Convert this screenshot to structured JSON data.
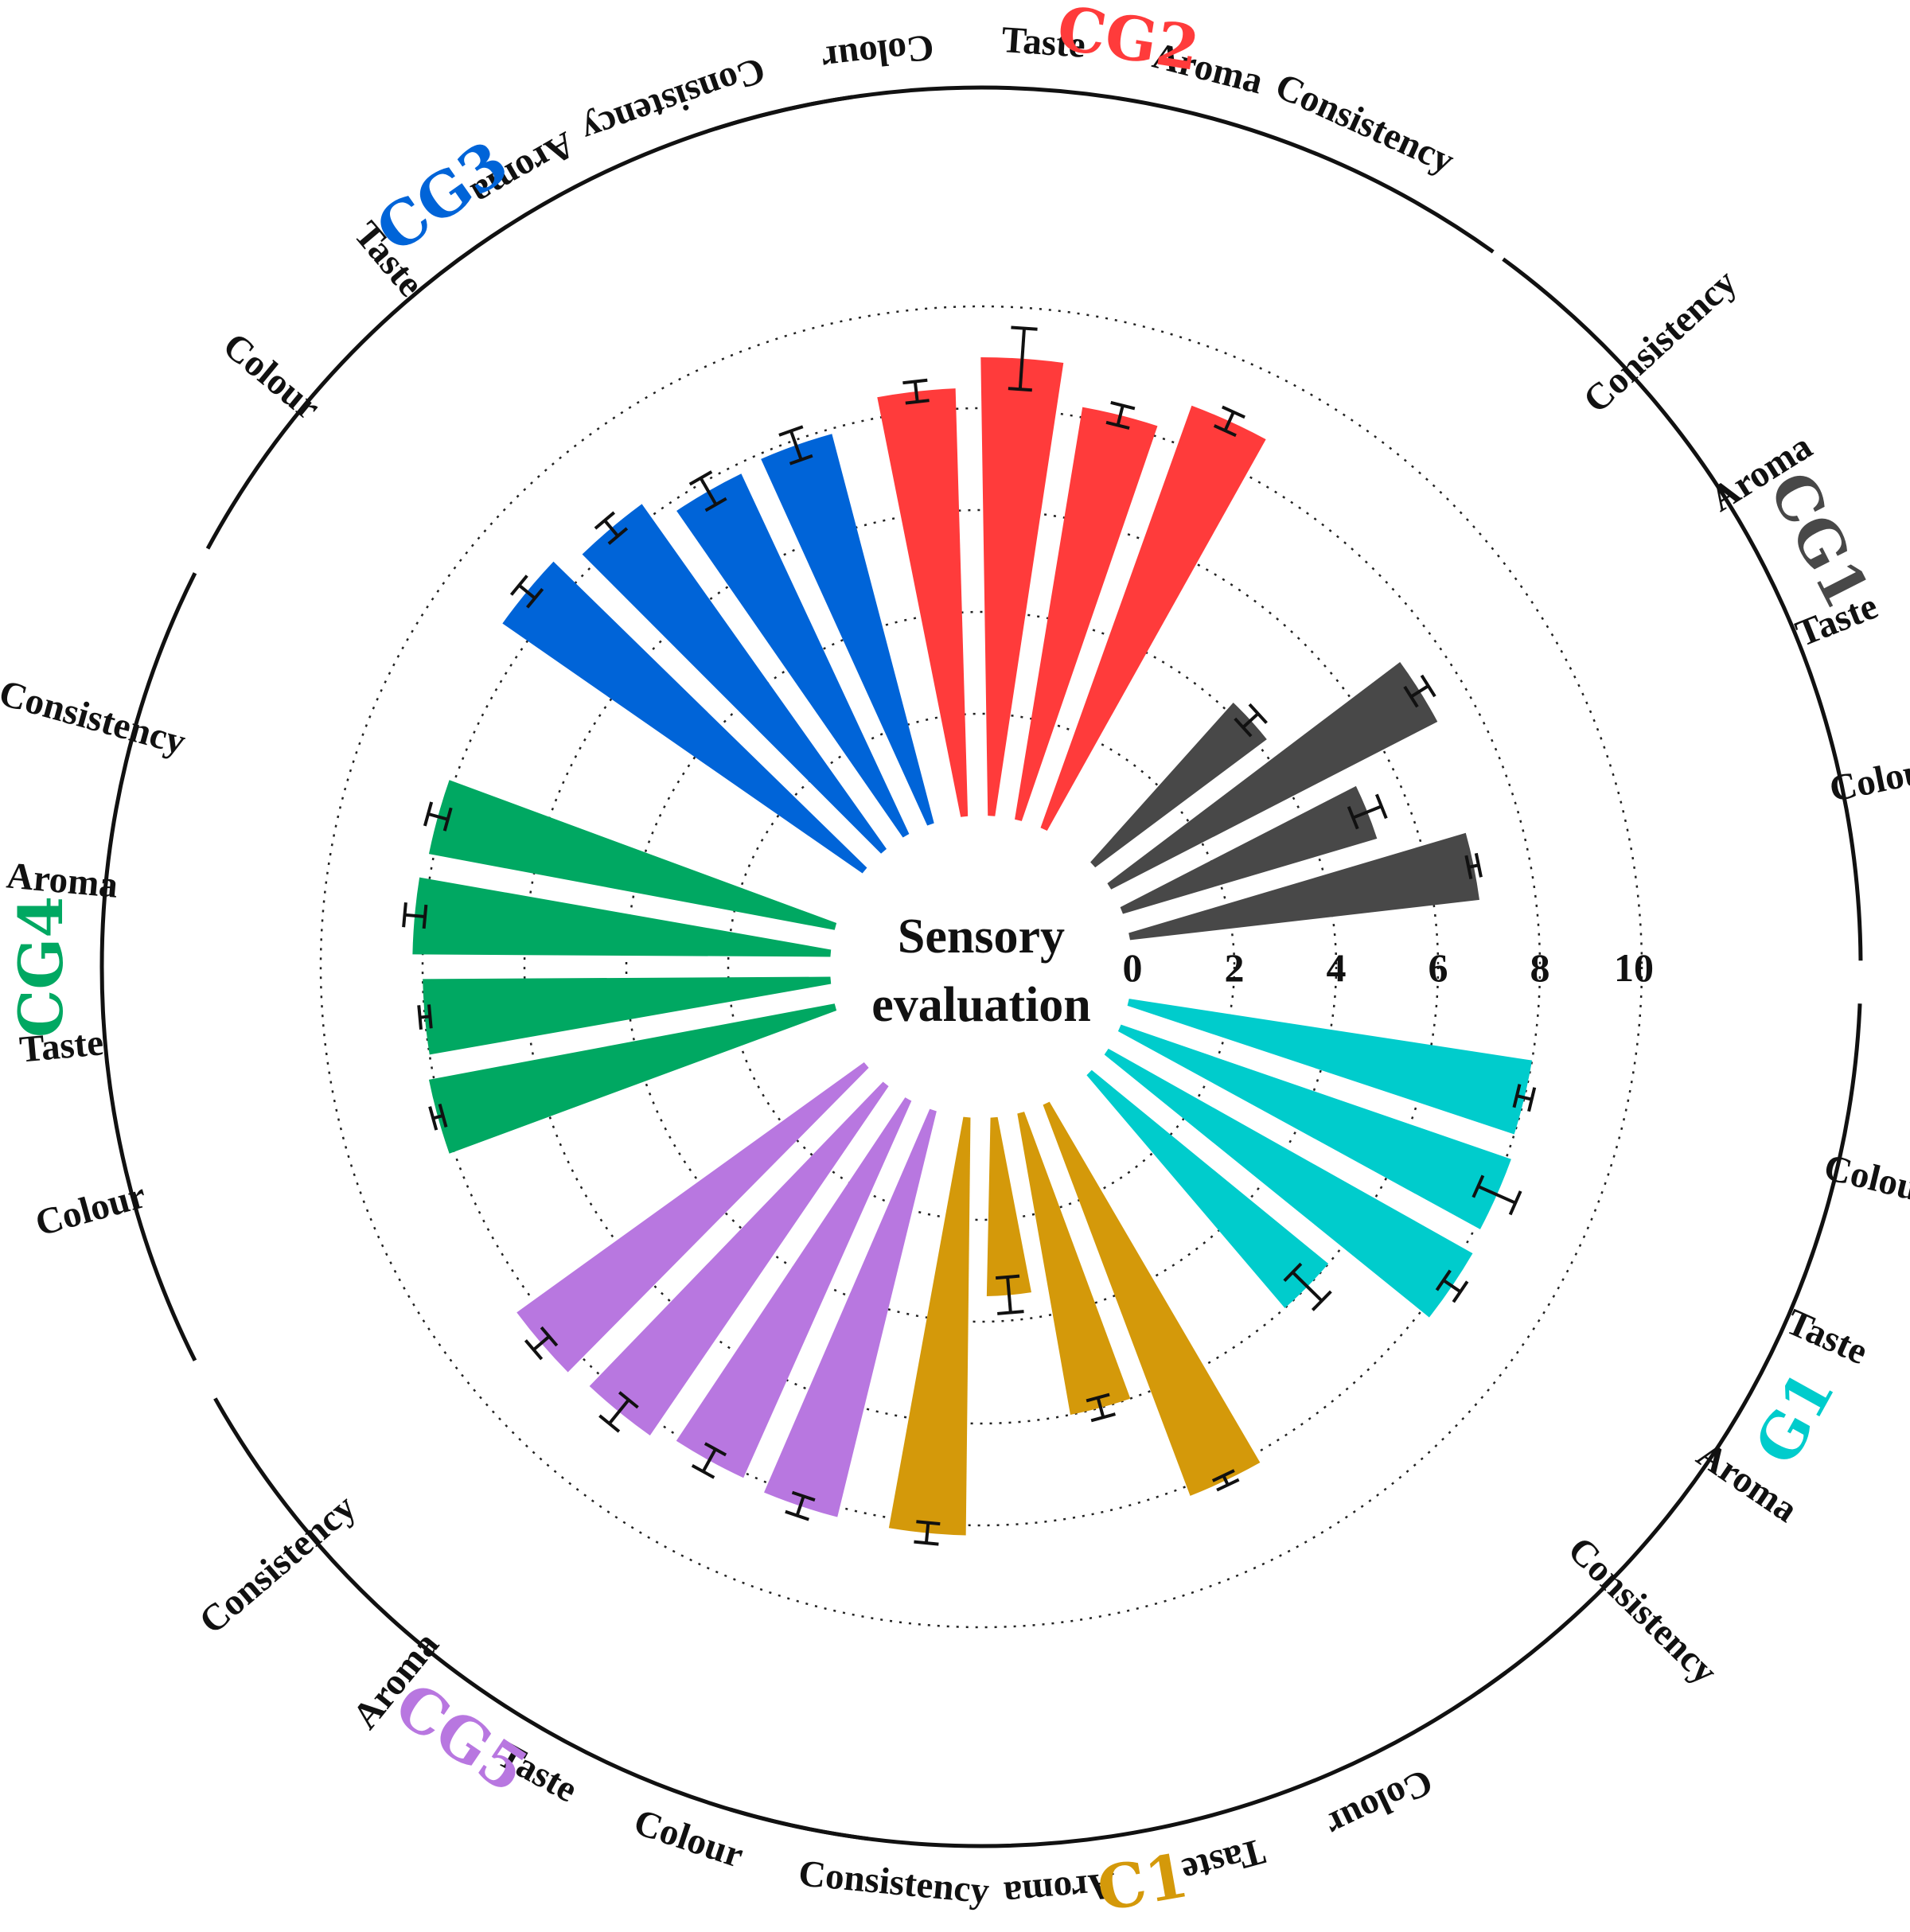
{
  "chart_data": {
    "type": "bar",
    "subtype": "circular-grouped-bar",
    "title": "Sensory evaluation",
    "radial_axis": {
      "min": 0,
      "max": 10,
      "ticks": [
        0,
        2,
        4,
        6,
        8,
        10
      ],
      "grid": "dotted"
    },
    "attributes": [
      "Colour",
      "Taste",
      "Aroma",
      "Consistency"
    ],
    "groups": [
      {
        "name": "G1",
        "color": "#00CCCC",
        "values": [
          8.0,
          8.1,
          8.2,
          6.0
        ],
        "errors": [
          0.15,
          0.4,
          0.2,
          0.4
        ]
      },
      {
        "name": "C1",
        "color": "#D4990A",
        "values": [
          8.2,
          6.0,
          3.5,
          8.2
        ],
        "errors": [
          0.1,
          0.2,
          0.35,
          0.2
        ]
      },
      {
        "name": "CG5",
        "color": "#B877E0",
        "values": [
          8.2,
          8.1,
          8.3,
          8.4
        ],
        "errors": [
          0.2,
          0.25,
          0.3,
          0.2
        ]
      },
      {
        "name": "CG4",
        "color": "#00A862",
        "values": [
          8.1,
          8.0,
          8.2,
          8.1
        ],
        "errors": [
          0.1,
          0.1,
          0.2,
          0.2
        ]
      },
      {
        "name": "CG3",
        "color": "#0064D8",
        "values": [
          8.6,
          8.3,
          7.8,
          7.9
        ],
        "errors": [
          0.2,
          0.2,
          0.3,
          0.3
        ]
      },
      {
        "name": "CG2",
        "color": "#FF3B3B",
        "values": [
          8.4,
          9.0,
          8.2,
          8.8
        ],
        "errors": [
          0.2,
          0.6,
          0.2,
          0.2
        ]
      },
      {
        "name": "CG1",
        "color": "#484848",
        "values": [
          6.9,
          5.2,
          7.2,
          4.2
        ],
        "errors": [
          0.1,
          0.3,
          0.2,
          0.2
        ]
      }
    ]
  }
}
